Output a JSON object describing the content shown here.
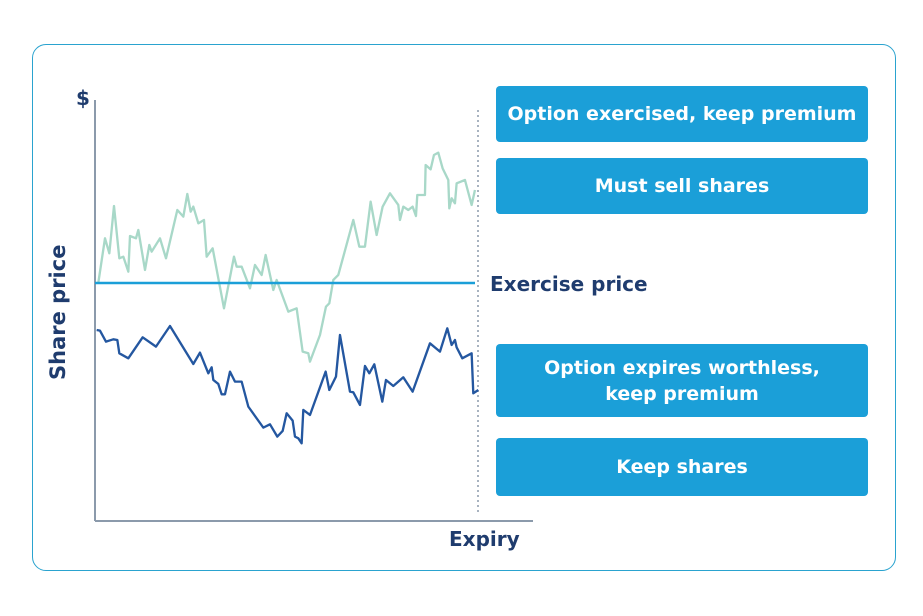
{
  "axes": {
    "y_unit": "$",
    "y_label": "Share price",
    "x_label": "Expiry"
  },
  "reference_line": {
    "label": "Exercise price"
  },
  "outcomes": {
    "above": [
      "Option exercised, keep premium",
      "Must sell shares"
    ],
    "below_line1": "Option expires worthless,",
    "below_line2": "keep premium",
    "below_extra": "Keep shares"
  },
  "colors": {
    "accent": "#1b9fd8",
    "text": "#1f3c6e",
    "high_path": "#a8d8c8",
    "low_path": "#2457a0"
  }
}
